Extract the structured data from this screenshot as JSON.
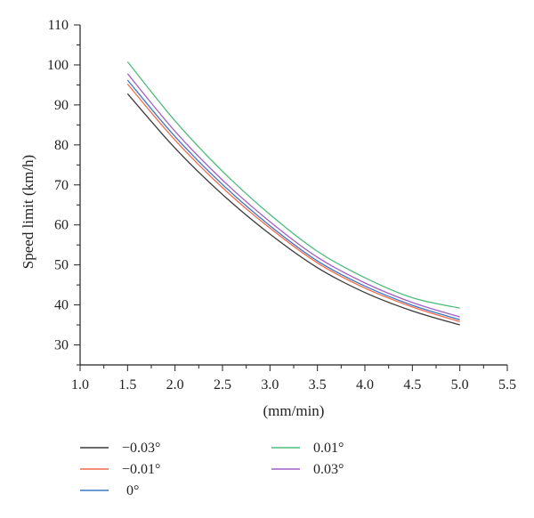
{
  "chart_data": {
    "type": "line",
    "title": "",
    "xlabel": "(mm/min)",
    "ylabel": "Speed limit (km/h)",
    "xlim": [
      1.0,
      5.5
    ],
    "ylim": [
      25,
      110
    ],
    "x_ticks": [
      "1.0",
      "1.5",
      "2.0",
      "2.5",
      "3.0",
      "3.5",
      "4.0",
      "4.5",
      "5.0",
      "5.5"
    ],
    "y_ticks": [
      "30",
      "40",
      "50",
      "60",
      "70",
      "80",
      "90",
      "100",
      "110"
    ],
    "grid": false,
    "legend_position": "bottom",
    "x": [
      1.5,
      2.0,
      2.5,
      3.0,
      3.5,
      4.0,
      4.5,
      5.0
    ],
    "series": [
      {
        "name": "−0.03°",
        "color": "#3a3a3a",
        "values": [
          92.8,
          79.2,
          67.6,
          57.7,
          49.3,
          43.1,
          38.5,
          35.0
        ]
      },
      {
        "name": "−0.01°",
        "color": "#f4694b",
        "values": [
          95.2,
          81.2,
          69.3,
          59.2,
          50.5,
          44.2,
          39.5,
          35.8
        ]
      },
      {
        "name": "0°",
        "color": "#3a78c2",
        "values": [
          96.2,
          82.1,
          70.1,
          59.8,
          51.0,
          44.7,
          39.9,
          36.3
        ]
      },
      {
        "name": "0.01°",
        "color": "#4dbb7c",
        "values": [
          100.8,
          86.0,
          73.4,
          62.6,
          53.4,
          46.8,
          41.8,
          39.2
        ]
      },
      {
        "name": "0.03°",
        "color": "#a25fc7",
        "values": [
          97.8,
          83.4,
          71.2,
          60.8,
          51.9,
          45.5,
          40.6,
          37.0
        ]
      }
    ]
  }
}
